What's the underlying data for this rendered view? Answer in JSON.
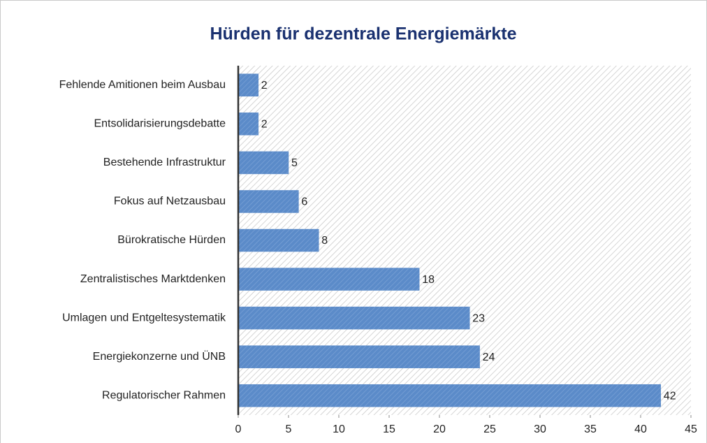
{
  "chart_data": {
    "type": "bar",
    "orientation": "horizontal",
    "title": "Hürden für dezentrale Energiemärkte",
    "categories": [
      "Fehlende Amitionen beim Ausbau",
      "Entsolidarisierungsdebatte",
      "Bestehende Infrastruktur",
      "Fokus auf Netzausbau",
      "Bürokratische Hürden",
      "Zentralistisches Marktdenken",
      "Umlagen und Entgeltesystematik",
      "Energiekonzerne und ÜNB",
      "Regulatorischer Rahmen"
    ],
    "values": [
      2,
      2,
      5,
      6,
      8,
      18,
      23,
      24,
      42
    ],
    "color": "#5b8bc9",
    "xlim": [
      0,
      45
    ],
    "xticks": [
      0,
      5,
      10,
      15,
      20,
      25,
      30,
      35,
      40,
      45
    ]
  }
}
